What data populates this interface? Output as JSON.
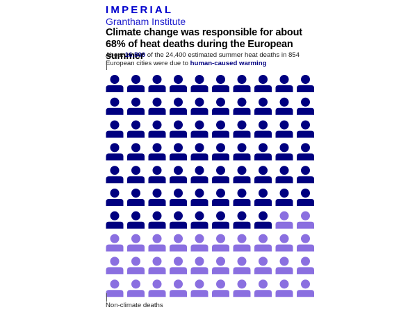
{
  "brand": {
    "name": "IMPERIAL",
    "subname": "Grantham Institute"
  },
  "title": "Climate change was responsible for about 68% of heat deaths during the European summer",
  "subtitle": {
    "part1": "About ",
    "highlight_number": "16,500",
    "part2": " of the 24,400 estimated summer heat deaths in 854 European cities were due to ",
    "highlight_phrase": "human-caused warming"
  },
  "bottom_label": "Non-climate deaths",
  "colors": {
    "climate": "#000080",
    "non_climate": "#8a6fe0"
  },
  "chart_data": {
    "type": "pictogram",
    "rows": 10,
    "columns": 10,
    "total_icons": 100,
    "climate_icons": 68,
    "non_climate_icons": 32,
    "climate_deaths": 16500,
    "total_deaths": 24400,
    "cities": 854,
    "categories": [
      "human-caused warming",
      "Non-climate deaths"
    ]
  }
}
